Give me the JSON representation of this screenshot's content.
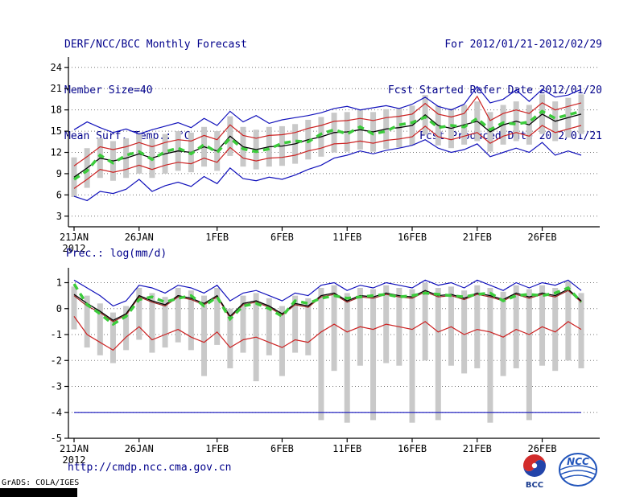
{
  "header": {
    "title": "DERF/NCC/BCC Monthly Forecast",
    "member_size": "Member Size=40",
    "for_range": "For 2012/01/21-2012/02/29",
    "refer_date": "Fcst Started Refer Date 2012/01/20",
    "produced_date": "Fcst Produced Date 2012/01/21"
  },
  "footer": {
    "url": "http://cmdp.ncc.cma.gov.cn",
    "grads_credit": "GrADS: COLA/IGES",
    "logos": [
      {
        "label": "BCC"
      },
      {
        "label": "NCC"
      }
    ]
  },
  "colors": {
    "header_text": "#00008b",
    "axis": "#000000",
    "grid": "#777777",
    "tick_label": "#000000",
    "bar": "#c9c9c9"
  },
  "chart_data": [
    {
      "type": "line",
      "title": "Mean Surf. Temp.: °C",
      "ylim": [
        1.5,
        25
      ],
      "yticks": [
        3,
        6,
        9,
        12,
        15,
        18,
        21,
        24
      ],
      "n_points": 40,
      "x_tick_indices": [
        0,
        5,
        11,
        16,
        21,
        26,
        31,
        36
      ],
      "x_tick_labels": [
        "21JAN",
        "26JAN",
        "1FEB",
        "6FEB",
        "11FEB",
        "16FEB",
        "21FEB",
        "26FEB"
      ],
      "x_year_label": "2012",
      "grid": true,
      "bars": {
        "name": "ensemble-member-spread",
        "color": "#c9c9c9",
        "top": [
          11.3,
          12.6,
          14.0,
          13.6,
          14.0,
          14.6,
          14.0,
          14.6,
          15.0,
          14.8,
          15.6,
          15.0,
          17.1,
          15.6,
          15.2,
          15.6,
          15.7,
          16.0,
          16.6,
          17.0,
          17.6,
          17.7,
          18.0,
          17.7,
          18.1,
          18.3,
          18.6,
          20.1,
          18.6,
          18.2,
          18.7,
          19.2,
          17.7,
          18.7,
          19.2,
          18.7,
          20.2,
          19.2,
          19.7,
          20.2
        ],
        "bottom": [
          5.7,
          7.0,
          8.4,
          8.0,
          8.4,
          9.0,
          8.4,
          9.0,
          9.4,
          9.2,
          10.0,
          9.4,
          11.5,
          10.0,
          9.6,
          10.0,
          10.1,
          10.4,
          11.0,
          11.4,
          12.0,
          12.1,
          12.4,
          12.1,
          12.5,
          12.7,
          13.0,
          14.5,
          13.0,
          12.6,
          13.1,
          13.6,
          12.1,
          13.1,
          13.6,
          13.1,
          14.6,
          13.6,
          14.1,
          14.6
        ]
      },
      "series": [
        {
          "name": "ensemble-max",
          "color": "#1111bb",
          "width": 1.2,
          "dash": "",
          "values": [
            15.2,
            16.3,
            15.5,
            14.8,
            15.3,
            14.6,
            15.2,
            15.7,
            16.2,
            15.5,
            16.8,
            15.8,
            17.8,
            16.3,
            17.2,
            16.1,
            16.6,
            16.9,
            17.2,
            17.6,
            18.2,
            18.5,
            18.0,
            18.3,
            18.6,
            18.2,
            18.8,
            19.8,
            18.5,
            18.0,
            18.8,
            21.3,
            19.0,
            19.5,
            20.8,
            19.2,
            20.9,
            19.8,
            20.1,
            20.9
          ]
        },
        {
          "name": "ensemble-min",
          "color": "#1111bb",
          "width": 1.2,
          "dash": "",
          "values": [
            5.8,
            5.2,
            6.5,
            6.2,
            6.8,
            8.2,
            6.5,
            7.3,
            7.8,
            7.2,
            8.6,
            7.6,
            9.8,
            8.3,
            8.0,
            8.5,
            8.2,
            8.8,
            9.6,
            10.2,
            11.2,
            11.6,
            12.2,
            11.8,
            12.3,
            12.6,
            13.0,
            13.8,
            12.6,
            12.0,
            12.4,
            13.2,
            11.4,
            12.0,
            12.6,
            12.0,
            13.4,
            11.6,
            12.2,
            11.6
          ]
        },
        {
          "name": "upper-spread",
          "color": "#cc2222",
          "width": 1.2,
          "dash": "",
          "values": [
            10.1,
            11.4,
            12.8,
            12.4,
            12.8,
            13.4,
            12.8,
            13.4,
            13.8,
            13.6,
            14.4,
            13.8,
            15.9,
            14.4,
            14.0,
            14.4,
            14.5,
            14.8,
            15.4,
            15.8,
            16.4,
            16.5,
            16.8,
            16.5,
            16.9,
            17.1,
            17.4,
            18.9,
            17.4,
            17.0,
            17.5,
            19.9,
            16.5,
            17.5,
            18.0,
            17.5,
            19.0,
            18.0,
            18.5,
            19.0
          ]
        },
        {
          "name": "lower-spread",
          "color": "#cc2222",
          "width": 1.2,
          "dash": "",
          "values": [
            6.9,
            8.2,
            9.6,
            9.2,
            9.6,
            10.2,
            9.6,
            10.2,
            10.6,
            10.4,
            11.2,
            10.6,
            12.7,
            11.2,
            10.8,
            11.2,
            11.3,
            11.6,
            12.2,
            12.6,
            13.2,
            13.3,
            13.6,
            13.3,
            13.7,
            13.9,
            14.2,
            15.7,
            14.2,
            13.8,
            14.3,
            14.8,
            13.3,
            14.3,
            14.8,
            14.3,
            15.8,
            14.8,
            15.3,
            15.8
          ]
        },
        {
          "name": "ensemble-mean",
          "color": "#000000",
          "width": 1.3,
          "dash": "",
          "values": [
            8.5,
            9.8,
            11.2,
            10.8,
            11.2,
            11.8,
            11.2,
            11.8,
            12.2,
            12.0,
            12.8,
            12.2,
            14.3,
            12.8,
            12.4,
            12.8,
            12.9,
            13.2,
            13.8,
            14.2,
            14.8,
            14.9,
            15.2,
            14.9,
            15.3,
            15.5,
            15.8,
            17.3,
            15.8,
            15.4,
            15.9,
            16.4,
            14.9,
            15.9,
            16.4,
            15.9,
            17.4,
            16.4,
            16.9,
            17.4
          ]
        },
        {
          "name": "ensemble-median",
          "color": "#3ccc3c",
          "width": 3.5,
          "dash": "8 6",
          "values": [
            8.2,
            9.4,
            11.6,
            10.5,
            11.6,
            12.1,
            11.0,
            12.1,
            12.6,
            11.8,
            13.1,
            12.0,
            14.0,
            12.5,
            12.1,
            12.5,
            13.3,
            13.6,
            13.5,
            14.6,
            15.2,
            14.6,
            15.6,
            14.6,
            15.0,
            15.9,
            16.2,
            17.0,
            15.5,
            15.8,
            15.6,
            16.8,
            15.2,
            16.2,
            16.0,
            16.3,
            17.8,
            16.8,
            17.3,
            17.8
          ]
        }
      ]
    },
    {
      "type": "line",
      "title": "Prec.: log(mm/d)",
      "ylim": [
        -5,
        1.45
      ],
      "yticks": [
        1,
        0,
        -1,
        -2,
        -3,
        -4,
        -5
      ],
      "n_points": 40,
      "x_tick_indices": [
        0,
        5,
        11,
        16,
        21,
        26,
        31,
        36
      ],
      "x_tick_labels": [
        "21JAN",
        "26JAN",
        "1FEB",
        "6FEB",
        "11FEB",
        "16FEB",
        "21FEB",
        "26FEB"
      ],
      "x_year_label": "2012",
      "grid": true,
      "bars": {
        "name": "ensemble-member-spread",
        "color": "#c9c9c9",
        "top": [
          0.85,
          0.5,
          0.2,
          -0.15,
          0.1,
          0.8,
          0.6,
          0.45,
          0.8,
          0.7,
          0.5,
          0.8,
          0.0,
          0.5,
          0.6,
          0.4,
          0.1,
          0.5,
          0.4,
          0.8,
          0.9,
          0.6,
          0.8,
          0.75,
          0.9,
          0.8,
          0.75,
          1.0,
          0.8,
          0.85,
          0.7,
          0.9,
          0.8,
          0.65,
          0.9,
          0.75,
          0.9,
          0.8,
          1.05,
          0.6
        ],
        "bottom": [
          -0.8,
          -1.5,
          -1.8,
          -2.1,
          -1.6,
          -1.2,
          -1.7,
          -1.5,
          -1.3,
          -1.6,
          -2.6,
          -1.4,
          -2.3,
          -1.7,
          -2.8,
          -1.8,
          -2.6,
          -1.7,
          -1.8,
          -4.3,
          -2.4,
          -4.4,
          -2.2,
          -4.3,
          -2.1,
          -2.2,
          -4.4,
          -2.0,
          -4.3,
          -2.2,
          -2.5,
          -2.3,
          -4.4,
          -2.6,
          -2.3,
          -4.3,
          -2.2,
          -2.4,
          -2.0,
          -2.3
        ]
      },
      "series": [
        {
          "name": "ensemble-max",
          "color": "#1111bb",
          "width": 1.2,
          "dash": "",
          "values": [
            1.1,
            0.8,
            0.5,
            0.1,
            0.3,
            0.9,
            0.8,
            0.6,
            0.9,
            0.8,
            0.6,
            0.9,
            0.3,
            0.6,
            0.7,
            0.5,
            0.3,
            0.6,
            0.5,
            0.9,
            1.0,
            0.7,
            0.9,
            0.8,
            1.0,
            0.9,
            0.8,
            1.1,
            0.9,
            1.0,
            0.8,
            1.1,
            0.9,
            0.7,
            1.0,
            0.8,
            1.0,
            0.9,
            1.1,
            0.7
          ]
        },
        {
          "name": "ensemble-min",
          "color": "#1111bb",
          "width": 1.2,
          "dash": "",
          "values": [
            -4,
            -4,
            -4,
            -4,
            -4,
            -4,
            -4,
            -4,
            -4,
            -4,
            -4,
            -4,
            -4,
            -4,
            -4,
            -4,
            -4,
            -4,
            -4,
            -4,
            -4,
            -4,
            -4,
            -4,
            -4,
            -4,
            -4,
            -4,
            -4,
            -4,
            -4,
            -4,
            -4,
            -4,
            -4,
            -4,
            -4,
            -4,
            -4,
            -4
          ]
        },
        {
          "name": "upper-spread",
          "color": "#992222",
          "width": 1.2,
          "dash": "",
          "values": [
            0.5,
            0.1,
            -0.15,
            -0.5,
            -0.25,
            0.45,
            0.25,
            0.1,
            0.45,
            0.35,
            0.15,
            0.45,
            -0.35,
            0.15,
            0.25,
            0.05,
            -0.25,
            0.15,
            0.05,
            0.45,
            0.55,
            0.25,
            0.45,
            0.4,
            0.55,
            0.45,
            0.4,
            0.65,
            0.45,
            0.5,
            0.35,
            0.55,
            0.45,
            0.3,
            0.55,
            0.4,
            0.55,
            0.45,
            0.7,
            0.25
          ]
        },
        {
          "name": "lower-spread",
          "color": "#cc2222",
          "width": 1.2,
          "dash": "",
          "values": [
            -0.3,
            -1.0,
            -1.3,
            -1.6,
            -1.1,
            -0.7,
            -1.2,
            -1.0,
            -0.8,
            -1.1,
            -1.3,
            -0.9,
            -1.5,
            -1.2,
            -1.1,
            -1.3,
            -1.5,
            -1.2,
            -1.3,
            -0.9,
            -0.6,
            -0.9,
            -0.7,
            -0.8,
            -0.6,
            -0.7,
            -0.8,
            -0.5,
            -0.9,
            -0.7,
            -1.0,
            -0.8,
            -0.9,
            -1.1,
            -0.8,
            -1.0,
            -0.7,
            -0.9,
            -0.5,
            -0.8
          ]
        },
        {
          "name": "ensemble-mean",
          "color": "#000000",
          "width": 1.3,
          "dash": "",
          "values": [
            0.55,
            0.2,
            -0.1,
            -0.45,
            -0.2,
            0.5,
            0.3,
            0.15,
            0.5,
            0.4,
            0.2,
            0.5,
            -0.3,
            0.2,
            0.3,
            0.1,
            -0.2,
            0.2,
            0.1,
            0.5,
            0.6,
            0.3,
            0.5,
            0.45,
            0.6,
            0.5,
            0.45,
            0.7,
            0.5,
            0.55,
            0.4,
            0.6,
            0.5,
            0.35,
            0.6,
            0.45,
            0.6,
            0.5,
            0.75,
            0.3
          ]
        },
        {
          "name": "ensemble-median",
          "color": "#3ccc3c",
          "width": 3.5,
          "dash": "8 6",
          "values": [
            0.95,
            0.15,
            -0.2,
            -0.6,
            -0.3,
            0.35,
            0.45,
            0.25,
            0.4,
            0.5,
            0.1,
            0.45,
            -0.4,
            0.1,
            0.2,
            0.0,
            -0.3,
            0.3,
            0.2,
            0.4,
            0.5,
            0.4,
            0.45,
            0.5,
            0.55,
            0.45,
            0.5,
            0.6,
            0.55,
            0.5,
            0.45,
            0.55,
            0.6,
            0.3,
            0.5,
            0.55,
            0.5,
            0.6,
            0.8,
            0.25
          ]
        }
      ]
    }
  ]
}
